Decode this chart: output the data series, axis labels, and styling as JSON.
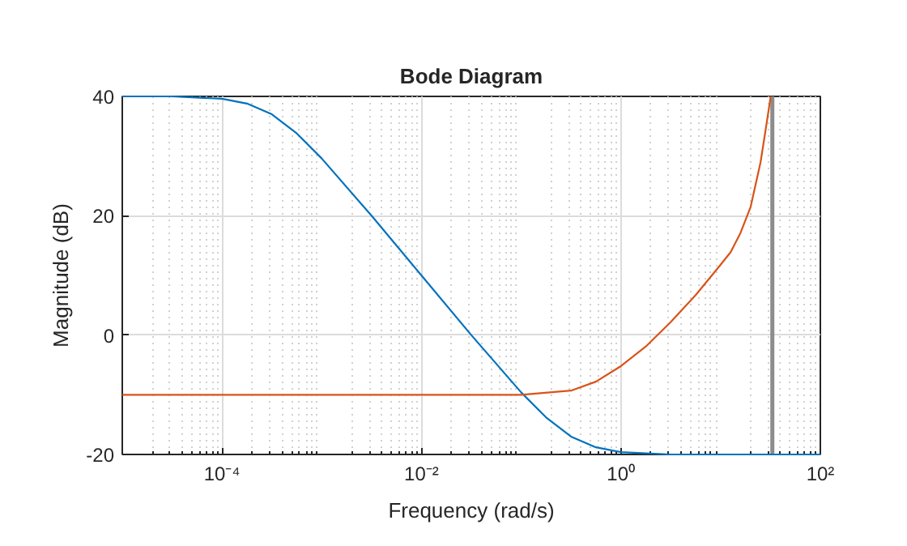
{
  "chart_data": {
    "type": "line",
    "title": "Bode Diagram",
    "xlabel": "Frequency (rad/s)",
    "ylabel": "Magnitude (dB)",
    "log": "x",
    "grid": true,
    "marker": "none",
    "line_style": "solid",
    "xlim": [
      1e-05,
      100
    ],
    "ylim": [
      -20,
      40
    ],
    "xticks": [
      {
        "value": 0.0001,
        "label": "10⁻⁴"
      },
      {
        "value": 0.01,
        "label": "10⁻²"
      },
      {
        "value": 1,
        "label": "10⁰"
      },
      {
        "value": 100,
        "label": "10²"
      }
    ],
    "yticks": [
      -20,
      0,
      20,
      40
    ],
    "series": [
      {
        "color": "#0072bd",
        "x": [
          1e-05,
          3.16e-05,
          0.0001,
          0.000178,
          0.000316,
          0.000562,
          0.001,
          0.00316,
          0.01,
          0.0316,
          0.1,
          0.178,
          0.316,
          0.562,
          1,
          3.16,
          10,
          100
        ],
        "values": [
          40,
          40,
          39.6,
          38.8,
          37.0,
          33.8,
          29.6,
          20.0,
          10.0,
          0.0,
          -9.6,
          -13.8,
          -17.0,
          -18.8,
          -19.6,
          -20,
          -20,
          -20
        ]
      },
      {
        "color": "#d95319",
        "x": [
          1e-05,
          0.001,
          0.1,
          0.316,
          0.562,
          1,
          1.78,
          3.16,
          5.62,
          10,
          12.6,
          15.8,
          20,
          25.1,
          28.2,
          31.6,
          32
        ],
        "values": [
          -10,
          -10,
          -10,
          -9.3,
          -7.8,
          -5.2,
          -1.9,
          2.2,
          6.7,
          11.8,
          13.9,
          17.1,
          21.5,
          28.9,
          34.3,
          39.7,
          40
        ]
      }
    ],
    "ref_lines": [
      {
        "axis": "x",
        "value": 33,
        "color": "#8c8c8c"
      }
    ]
  }
}
